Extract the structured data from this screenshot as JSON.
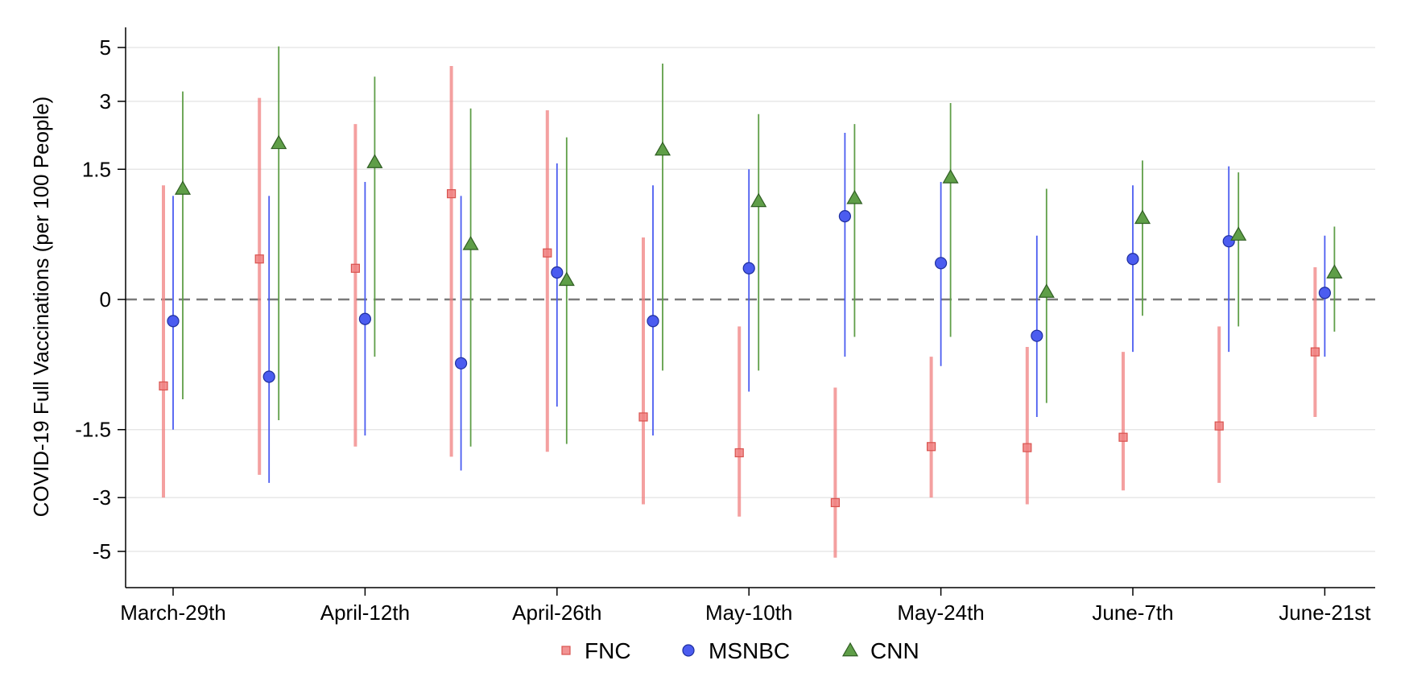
{
  "chart_data": {
    "type": "scatter",
    "title": "",
    "xlabel": "",
    "ylabel": "COVID-19 Full Vaccinations (per 100 People)",
    "x_tick_labels": [
      "March-29th",
      "April-12th",
      "April-26th",
      "May-10th",
      "May-24th",
      "June-7th",
      "June-21st"
    ],
    "week_count": 13,
    "y_ticks": [
      5,
      3,
      1.5,
      0,
      -1.5,
      -3,
      -5
    ],
    "y_tick_labels": [
      "5",
      "3",
      "1.5",
      "0",
      "-1.5",
      "-3",
      "-5"
    ],
    "y_scale": "asinh",
    "ylim": [
      -5.7,
      5.7
    ],
    "reference_line": 0,
    "grid": true,
    "legend_position": "bottom",
    "series": [
      {
        "name": "FNC",
        "marker": "square",
        "color": "#F08080",
        "estimate": [
          -0.88,
          0.38,
          0.29,
          1.13,
          0.44,
          -1.3,
          -1.92,
          -3.15,
          -1.8,
          -1.82,
          -1.63,
          -1.44,
          -0.5
        ],
        "ci_low": [
          -3.0,
          -2.4,
          -1.8,
          -2.0,
          -1.9,
          -3.2,
          -3.6,
          -5.3,
          -3.0,
          -3.2,
          -2.8,
          -2.6,
          -1.3
        ],
        "ci_high": [
          1.25,
          3.1,
          2.4,
          4.2,
          2.75,
          0.6,
          -0.25,
          -0.9,
          -0.55,
          -0.45,
          -0.5,
          -0.25,
          0.3
        ]
      },
      {
        "name": "MSNBC",
        "marker": "circle",
        "color": "#4B5CF0",
        "estimate": [
          -0.2,
          -0.77,
          -0.18,
          -0.62,
          0.25,
          -0.2,
          0.29,
          0.84,
          0.34,
          -0.34,
          0.38,
          0.56,
          0.06
        ],
        "ci_low": [
          -1.5,
          -2.6,
          -1.6,
          -2.3,
          -1.15,
          -1.6,
          -0.95,
          -0.55,
          -0.65,
          -1.3,
          -0.5,
          -0.5,
          -0.55
        ],
        "ci_high": [
          1.1,
          1.1,
          1.3,
          1.1,
          1.6,
          1.25,
          1.5,
          2.2,
          1.3,
          0.62,
          1.25,
          1.55,
          0.62
        ]
      },
      {
        "name": "CNN",
        "marker": "triangle",
        "color": "#5F9E48",
        "estimate": [
          1.2,
          1.98,
          1.62,
          0.53,
          0.18,
          1.85,
          1.03,
          1.07,
          1.37,
          0.07,
          0.82,
          0.63,
          0.25
        ],
        "ci_low": [
          -1.05,
          -1.35,
          -0.55,
          -1.8,
          -1.75,
          -0.7,
          -0.7,
          -0.35,
          -0.35,
          -1.1,
          -0.15,
          -0.25,
          -0.3
        ],
        "ci_high": [
          3.3,
          5.05,
          3.8,
          2.8,
          2.1,
          4.3,
          2.65,
          2.4,
          2.95,
          1.2,
          1.65,
          1.45,
          0.72
        ]
      }
    ]
  }
}
